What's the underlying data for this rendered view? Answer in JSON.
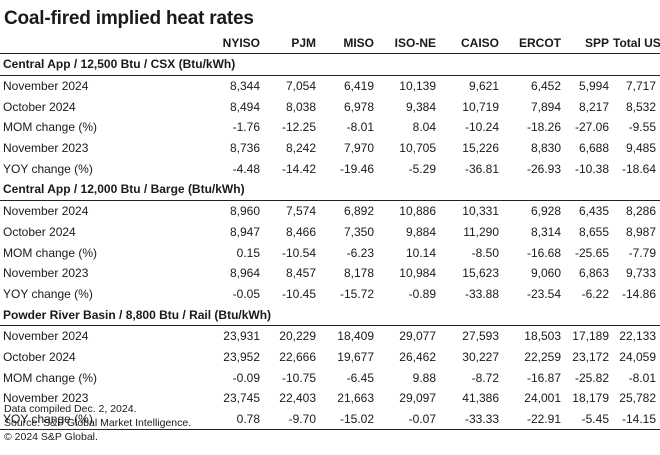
{
  "title": "Coal-fired implied heat rates",
  "columns": [
    "",
    "NYISO",
    "PJM",
    "MISO",
    "ISO-NE",
    "CAISO",
    "ERCOT",
    "SPP",
    "Total US"
  ],
  "sections": [
    {
      "name": "Central App / 12,500 Btu / CSX (Btu/kWh)",
      "rows": [
        {
          "label": "November 2024",
          "values": [
            "8,344",
            "7,054",
            "6,419",
            "10,139",
            "9,621",
            "6,452",
            "5,994",
            "7,717"
          ]
        },
        {
          "label": "October 2024",
          "values": [
            "8,494",
            "8,038",
            "6,978",
            "9,384",
            "10,719",
            "7,894",
            "8,217",
            "8,532"
          ]
        },
        {
          "label": "MOM change (%)",
          "values": [
            "-1.76",
            "-12.25",
            "-8.01",
            "8.04",
            "-10.24",
            "-18.26",
            "-27.06",
            "-9.55"
          ]
        },
        {
          "label": "November 2023",
          "values": [
            "8,736",
            "8,242",
            "7,970",
            "10,705",
            "15,226",
            "8,830",
            "6,688",
            "9,485"
          ]
        },
        {
          "label": "YOY change (%)",
          "values": [
            "-4.48",
            "-14.42",
            "-19.46",
            "-5.29",
            "-36.81",
            "-26.93",
            "-10.38",
            "-18.64"
          ]
        }
      ]
    },
    {
      "name": "Central App / 12,000 Btu / Barge (Btu/kWh)",
      "rows": [
        {
          "label": "November 2024",
          "values": [
            "8,960",
            "7,574",
            "6,892",
            "10,886",
            "10,331",
            "6,928",
            "6,435",
            "8,286"
          ]
        },
        {
          "label": "October 2024",
          "values": [
            "8,947",
            "8,466",
            "7,350",
            "9,884",
            "11,290",
            "8,314",
            "8,655",
            "8,987"
          ]
        },
        {
          "label": "MOM change (%)",
          "values": [
            "0.15",
            "-10.54",
            "-6.23",
            "10.14",
            "-8.50",
            "-16.68",
            "-25.65",
            "-7.79"
          ]
        },
        {
          "label": "November 2023",
          "values": [
            "8,964",
            "8,457",
            "8,178",
            "10,984",
            "15,623",
            "9,060",
            "6,863",
            "9,733"
          ]
        },
        {
          "label": "YOY change (%)",
          "values": [
            "-0.05",
            "-10.45",
            "-15.72",
            "-0.89",
            "-33.88",
            "-23.54",
            "-6.22",
            "-14.86"
          ]
        }
      ]
    },
    {
      "name": "Powder River Basin / 8,800 Btu / Rail (Btu/kWh)",
      "rows": [
        {
          "label": "November 2024",
          "values": [
            "23,931",
            "20,229",
            "18,409",
            "29,077",
            "27,593",
            "18,503",
            "17,189",
            "22,133"
          ]
        },
        {
          "label": "October 2024",
          "values": [
            "23,952",
            "22,666",
            "19,677",
            "26,462",
            "30,227",
            "22,259",
            "23,172",
            "24,059"
          ]
        },
        {
          "label": "MOM change (%)",
          "values": [
            "-0.09",
            "-10.75",
            "-6.45",
            "9.88",
            "-8.72",
            "-16.87",
            "-25.82",
            "-8.01"
          ]
        },
        {
          "label": "November 2023",
          "values": [
            "23,745",
            "22,403",
            "21,663",
            "29,097",
            "41,386",
            "24,001",
            "18,179",
            "25,782"
          ]
        },
        {
          "label": "YOY change (%)",
          "values": [
            "0.78",
            "-9.70",
            "-15.02",
            "-0.07",
            "-33.33",
            "-22.91",
            "-5.45",
            "-14.15"
          ]
        }
      ]
    }
  ],
  "footer": [
    "Data compiled Dec. 2, 2024.",
    "Source: S&P Global Market Intelligence.",
    "© 2024 S&P Global."
  ]
}
